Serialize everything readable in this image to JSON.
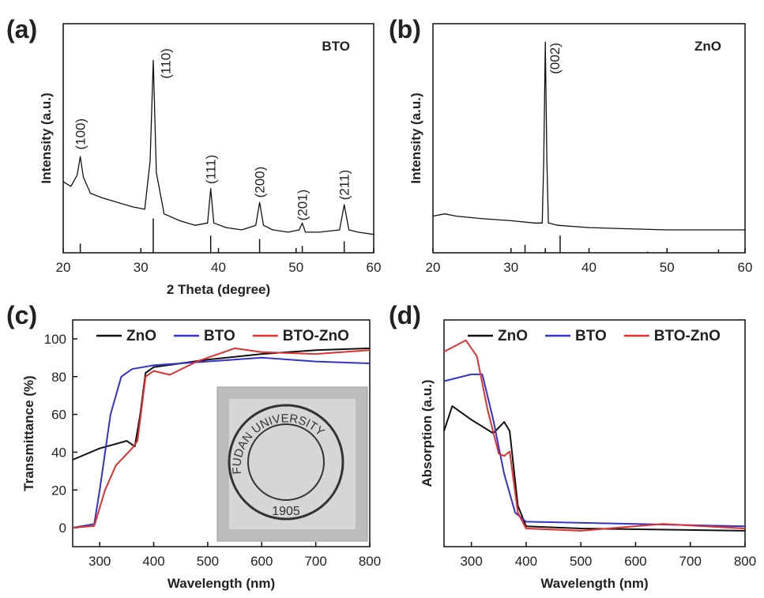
{
  "chart_data": [
    {
      "type": "line",
      "panel_label": "(a)",
      "label": "BTO",
      "x_label": "2 Theta (degree)",
      "y_label": "Intensity (a.u.)",
      "xlim": [
        20,
        60
      ],
      "xticks": [
        20,
        30,
        40,
        50,
        60
      ],
      "ylim": [
        0,
        100
      ],
      "series": [
        {
          "color": "#111111",
          "x": [
            20,
            21,
            21.8,
            22.2,
            22.6,
            23.5,
            25,
            27,
            29,
            30.5,
            31.2,
            31.6,
            32,
            33,
            35,
            37,
            38.6,
            39,
            39.4,
            41,
            43,
            44.8,
            45.3,
            45.8,
            47,
            49,
            50.4,
            50.8,
            51.2,
            53,
            55.6,
            56.2,
            56.8,
            58,
            60
          ],
          "values": [
            31,
            29,
            34,
            42,
            33,
            26,
            24,
            22,
            20,
            19,
            40,
            84,
            35,
            17,
            14,
            12,
            13,
            28,
            13,
            11,
            10,
            12,
            22,
            12,
            10,
            9,
            10,
            13,
            9,
            9,
            10,
            21,
            10,
            9,
            8
          ]
        }
      ],
      "reference": {
        "x": [
          22.2,
          31.6,
          39.0,
          45.3,
          50.8,
          56.2
        ],
        "values": [
          4,
          15,
          7.5,
          6,
          3,
          5
        ]
      },
      "annotations": [
        {
          "text": "(100)",
          "x": 22.2,
          "y": 45
        },
        {
          "text": "(110)",
          "x": 33.2,
          "y": 76
        },
        {
          "text": "(111)",
          "x": 39.0,
          "y": 30
        },
        {
          "text": "(200)",
          "x": 45.3,
          "y": 24
        },
        {
          "text": "(201)",
          "x": 50.8,
          "y": 14
        },
        {
          "text": "(211)",
          "x": 56.2,
          "y": 23
        }
      ]
    },
    {
      "type": "line",
      "panel_label": "(b)",
      "label": "ZnO",
      "y_label": "Intensity (a.u.)",
      "xlim": [
        20,
        60
      ],
      "xticks": [
        20,
        30,
        40,
        50,
        60
      ],
      "ylim": [
        0,
        100
      ],
      "series": [
        {
          "color": "#111111",
          "x": [
            20,
            21.5,
            23,
            26,
            30,
            33,
            34,
            34.2,
            34.4,
            34.6,
            34.8,
            36,
            40,
            45,
            50,
            55,
            60
          ],
          "values": [
            16,
            17,
            16,
            15,
            14,
            13,
            13,
            40,
            92,
            40,
            13,
            12,
            11,
            10.5,
            10,
            10,
            10
          ]
        }
      ],
      "reference": {
        "x": [
          31.8,
          34.4,
          36.3,
          47.5,
          56.6
        ],
        "values": [
          3.5,
          2,
          7.5,
          0.5,
          1.5
        ]
      },
      "annotations": [
        {
          "text": "(002)",
          "x": 35.6,
          "y": 78
        }
      ]
    },
    {
      "type": "line",
      "panel_label": "(c)",
      "x_label": "Wavelength (nm)",
      "y_label": "Transmittance (%)",
      "xlim": [
        250,
        800
      ],
      "xticks": [
        300,
        400,
        500,
        600,
        700,
        800
      ],
      "ylim": [
        -10,
        110
      ],
      "yticks": [
        0,
        20,
        40,
        60,
        80,
        100
      ],
      "series": [
        {
          "name": "ZnO",
          "color": "#111111",
          "x": [
            250,
            300,
            350,
            365,
            375,
            385,
            400,
            500,
            600,
            700,
            800
          ],
          "values": [
            36,
            42,
            46,
            43,
            60,
            82,
            85,
            89,
            92,
            94,
            95
          ]
        },
        {
          "name": "BTO",
          "color": "#3333cc",
          "x": [
            250,
            290,
            300,
            320,
            340,
            360,
            400,
            500,
            600,
            700,
            800
          ],
          "values": [
            0,
            2,
            20,
            60,
            80,
            84,
            86,
            88,
            90,
            88,
            87
          ]
        },
        {
          "name": "BTO-ZnO",
          "color": "#e03030",
          "x": [
            250,
            290,
            310,
            330,
            360,
            370,
            385,
            400,
            430,
            480,
            550,
            600,
            700,
            800
          ],
          "values": [
            0,
            1,
            20,
            33,
            42,
            46,
            80,
            83,
            81,
            88,
            95,
            93,
            92,
            94
          ]
        }
      ],
      "inset_text": [
        "FUDAN UNIVERSITY",
        "1905"
      ]
    },
    {
      "type": "line",
      "panel_label": "(d)",
      "x_label": "Wavelength (nm)",
      "y_label": "Absorption (a.u.)",
      "xlim": [
        250,
        800
      ],
      "xticks": [
        300,
        400,
        500,
        600,
        700,
        800
      ],
      "ylim": [
        0,
        100
      ],
      "series": [
        {
          "name": "ZnO",
          "color": "#111111",
          "x": [
            250,
            265,
            300,
            340,
            360,
            370,
            385,
            400,
            500,
            800
          ],
          "values": [
            51,
            62,
            56,
            50,
            55,
            51,
            18,
            9,
            8,
            7
          ]
        },
        {
          "name": "BTO",
          "color": "#3333cc",
          "x": [
            250,
            300,
            320,
            340,
            360,
            380,
            400,
            600,
            800
          ],
          "values": [
            73,
            76,
            76,
            56,
            32,
            15,
            11,
            10,
            9
          ]
        },
        {
          "name": "BTO-ZnO",
          "color": "#e03030",
          "x": [
            250,
            290,
            310,
            330,
            350,
            360,
            370,
            385,
            400,
            500,
            650,
            800
          ],
          "values": [
            86,
            91,
            84,
            60,
            41,
            40,
            42,
            15,
            8,
            7,
            10,
            8
          ]
        }
      ]
    }
  ]
}
